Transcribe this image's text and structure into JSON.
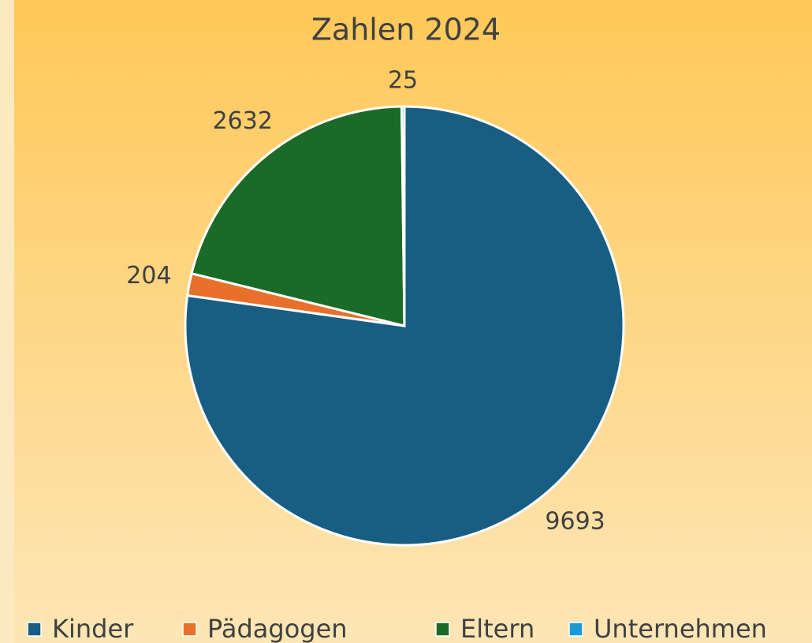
{
  "chart_data": {
    "type": "pie",
    "title": "Zahlen 2024",
    "categories": [
      "Kinder",
      "Pädagogen",
      "Eltern",
      "Unternehmen"
    ],
    "values": [
      9693,
      204,
      2632,
      25
    ],
    "colors": [
      "#175e82",
      "#e8702a",
      "#1b6b28",
      "#1a9bd7"
    ],
    "legend": "bottom"
  }
}
